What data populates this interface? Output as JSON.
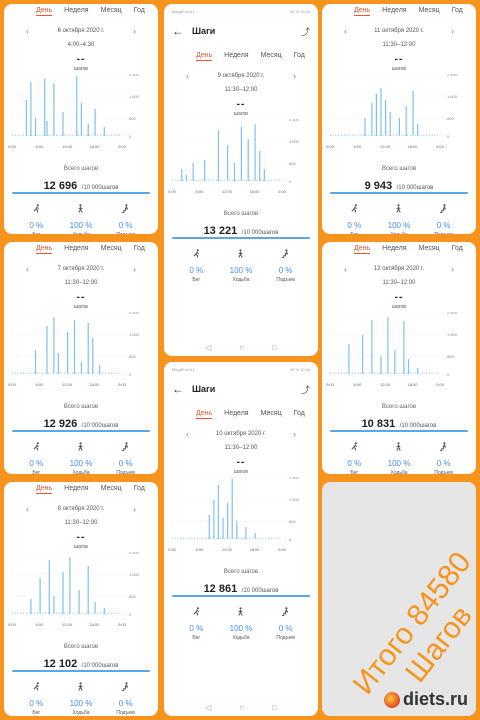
{
  "tabs": [
    "День",
    "Неделя",
    "Месяц",
    "Год"
  ],
  "status": {
    "left": "MegaFon #1",
    "right": "49 % 10:34"
  },
  "header": {
    "title": "Шаги",
    "back": "←",
    "share": "⤴"
  },
  "nav": {
    "back": "◁",
    "home": "○",
    "recent": "□"
  },
  "labels": {
    "total": "Всего шагов",
    "goal": "/10 000шагов",
    "unit": "шагов",
    "dash": "--"
  },
  "activities": [
    {
      "name": "Бег",
      "pct": "0 %",
      "icon": "running-icon"
    },
    {
      "name": "Ходьба",
      "pct": "100 %",
      "icon": "walking-icon"
    },
    {
      "name": "Подъем",
      "pct": "0 %",
      "icon": "climbing-icon"
    }
  ],
  "ticks": {
    "y": [
      "2 400",
      "1 600",
      "800",
      "0"
    ],
    "x": [
      "0:00",
      "6:00",
      "12:00",
      "18:00",
      "0:00"
    ]
  },
  "days": [
    {
      "date": "6 октября 2020 г.",
      "range": "4:00–4:30",
      "total": "12 696"
    },
    {
      "date": "9 октября 2020 г.",
      "range": "11:30–12:00",
      "total": "13 221"
    },
    {
      "date": "11 октября 2020 г.",
      "range": "11:30–12:00",
      "total": "9 943"
    },
    {
      "date": "7 октября 2020 г.",
      "range": "11:30–12:00",
      "total": "12 926"
    },
    {
      "date": "12 октября 2020 г.",
      "range": "11:30–12:00",
      "total": "10 831"
    },
    {
      "date": "8 октября 2020 г.",
      "range": "11:30–12:00",
      "total": "12 102"
    },
    {
      "date": "10 октября 2020 г.",
      "range": "11:30–12:00",
      "total": "12 861"
    }
  ],
  "promo": {
    "line1": "Итого 84580",
    "line2": "Шагов"
  },
  "logo": "diets.ru"
}
